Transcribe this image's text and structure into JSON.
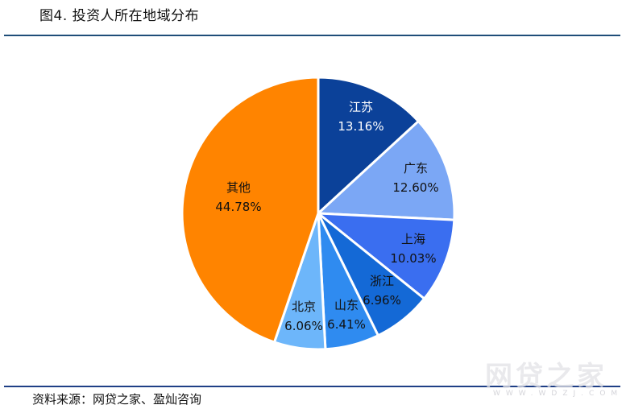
{
  "header": {
    "title": "图4. 投资人所在地域分布"
  },
  "footer": {
    "source": "资料来源：网贷之家、盈灿咨询"
  },
  "watermark": {
    "main": "网贷之家",
    "sub": "WWW.WDZJ.COM"
  },
  "colors": {
    "rule": "#1F4E79",
    "jiangsu": "#0B4199",
    "guangdong": "#7BA7F5",
    "shanghai": "#3A6EF0",
    "zhejiang": "#1469D6",
    "shandong": "#2F8BF0",
    "beijing": "#6DB6FA",
    "other": "#FF8400"
  },
  "chart_data": {
    "type": "pie",
    "title": "图4. 投资人所在地域分布",
    "start_angle": "12 o'clock, clockwise",
    "categories": [
      "江苏",
      "广东",
      "上海",
      "浙江",
      "山东",
      "北京",
      "其他"
    ],
    "values": [
      13.16,
      12.6,
      10.03,
      6.96,
      6.41,
      6.06,
      44.78
    ],
    "labels": [
      "13.16%",
      "12.60%",
      "10.03%",
      "6.96%",
      "6.41%",
      "6.06%",
      "44.78%"
    ],
    "label_colors": [
      "#FFFFFF",
      "#111111",
      "#111111",
      "#111111",
      "#111111",
      "#111111",
      "#111111"
    ],
    "legend": "none (labels inside slices)",
    "source": "资料来源：网贷之家、盈灿咨询"
  }
}
